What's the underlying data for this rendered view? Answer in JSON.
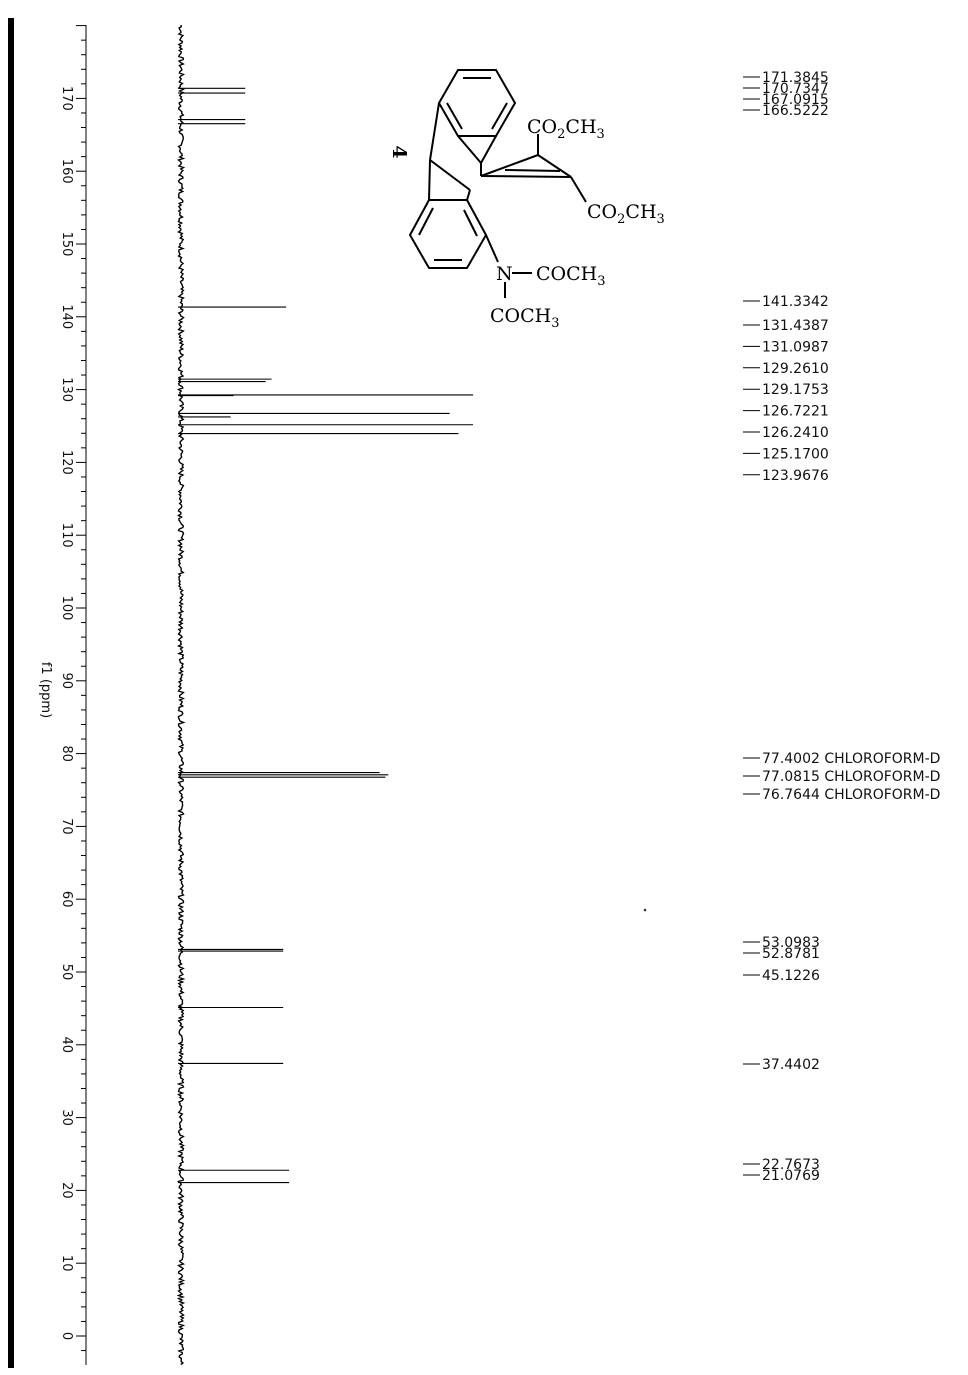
{
  "chart_data": {
    "type": "line",
    "title": "",
    "xlabel": "f1 (ppm)",
    "ylabel": "",
    "axis_orientation": "vertical, decreasing downward",
    "xlim": [
      180,
      -2
    ],
    "ticks": [
      170,
      160,
      150,
      140,
      130,
      120,
      110,
      100,
      90,
      80,
      70,
      60,
      50,
      40,
      30,
      20,
      10,
      0
    ],
    "grid": false,
    "peaks": [
      {
        "ppm": 171.3845,
        "intensity": 0.22
      },
      {
        "ppm": 170.7347,
        "intensity": 0.22
      },
      {
        "ppm": 167.0915,
        "intensity": 0.22
      },
      {
        "ppm": 166.5222,
        "intensity": 0.22
      },
      {
        "ppm": 141.3342,
        "intensity": 0.36
      },
      {
        "ppm": 131.4387,
        "intensity": 0.31
      },
      {
        "ppm": 131.0987,
        "intensity": 0.29
      },
      {
        "ppm": 129.261,
        "intensity": 1.0
      },
      {
        "ppm": 129.1753,
        "intensity": 0.18
      },
      {
        "ppm": 126.7221,
        "intensity": 0.92
      },
      {
        "ppm": 126.241,
        "intensity": 0.17
      },
      {
        "ppm": 125.17,
        "intensity": 1.0
      },
      {
        "ppm": 123.9676,
        "intensity": 0.95
      },
      {
        "ppm": 77.4002,
        "intensity": 0.68
      },
      {
        "ppm": 77.0815,
        "intensity": 0.71
      },
      {
        "ppm": 76.7644,
        "intensity": 0.7
      },
      {
        "ppm": 53.0983,
        "intensity": 0.35
      },
      {
        "ppm": 52.8781,
        "intensity": 0.35
      },
      {
        "ppm": 45.1226,
        "intensity": 0.35
      },
      {
        "ppm": 37.4402,
        "intensity": 0.35
      },
      {
        "ppm": 22.7673,
        "intensity": 0.37
      },
      {
        "ppm": 21.0769,
        "intensity": 0.37
      }
    ],
    "peak_labels": [
      {
        "text": "171.3845"
      },
      {
        "text": "170.7347"
      },
      {
        "text": "167.0915"
      },
      {
        "text": "166.5222"
      },
      {
        "text": "141.3342"
      },
      {
        "text": "131.4387"
      },
      {
        "text": "131.0987"
      },
      {
        "text": "129.2610"
      },
      {
        "text": "129.1753"
      },
      {
        "text": "126.7221"
      },
      {
        "text": "126.2410"
      },
      {
        "text": "125.1700"
      },
      {
        "text": "123.9676"
      },
      {
        "text": "77.4002 CHLOROFORM-D"
      },
      {
        "text": "77.0815 CHLOROFORM-D"
      },
      {
        "text": "76.7644 CHLOROFORM-D"
      },
      {
        "text": "53.0983"
      },
      {
        "text": "52.8781"
      },
      {
        "text": "45.1226"
      },
      {
        "text": "37.4402"
      },
      {
        "text": "22.7673"
      },
      {
        "text": "21.0769"
      }
    ]
  },
  "structure": {
    "compound_number": "4",
    "group_top": "CO2CH3",
    "group_right": "CO2CH3",
    "amine_atom": "N",
    "amine_right": "COCH3",
    "amine_bottom": "COCH3"
  }
}
